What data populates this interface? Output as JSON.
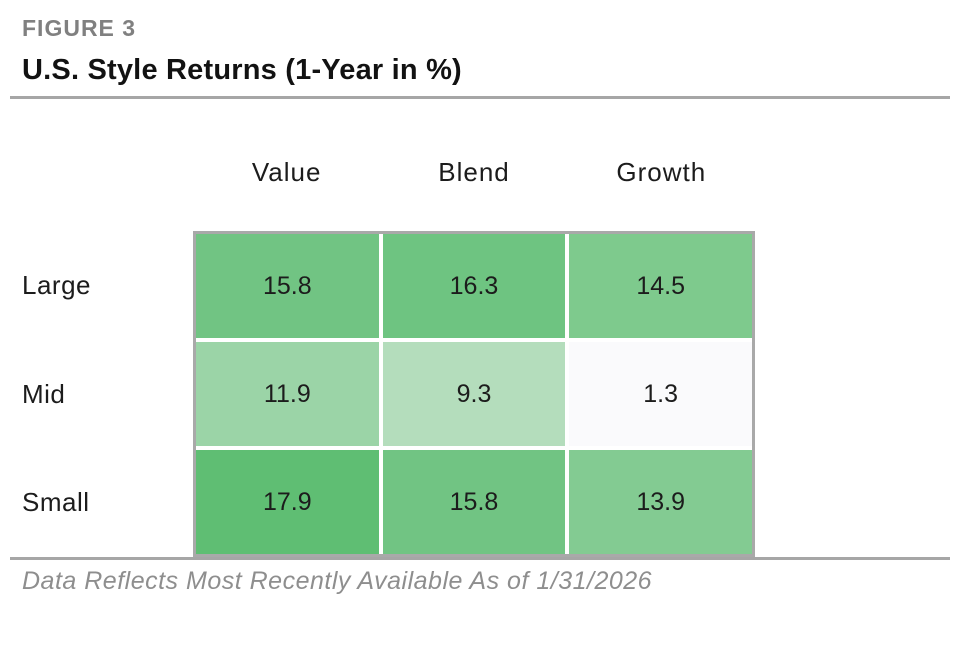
{
  "figure": {
    "label": "FIGURE 3",
    "title": "U.S. Style Returns (1-Year in %)"
  },
  "footer": {
    "note": "Data Reflects Most Recently Available As of 1/31/2026"
  },
  "chart_data": {
    "type": "heatmap",
    "title": "U.S. Style Returns (1-Year in %)",
    "columns": [
      "Value",
      "Blend",
      "Growth"
    ],
    "rows": [
      "Large",
      "Mid",
      "Small"
    ],
    "values": [
      [
        15.8,
        16.3,
        14.5
      ],
      [
        11.9,
        9.3,
        1.3
      ],
      [
        17.9,
        15.8,
        13.9
      ]
    ],
    "cell_colors": [
      [
        "#71c483",
        "#6ec481",
        "#7eca8d"
      ],
      [
        "#9bd4a7",
        "#b4ddbc",
        "#fafafc"
      ],
      [
        "#5fbe73",
        "#71c483",
        "#83cb92"
      ]
    ],
    "color_scale": {
      "low_value_color": "#fafafc",
      "high_value_color": "#5fbe73"
    },
    "layout": {
      "grid": "3x3 style box",
      "legend": "none",
      "units": "percent"
    }
  }
}
